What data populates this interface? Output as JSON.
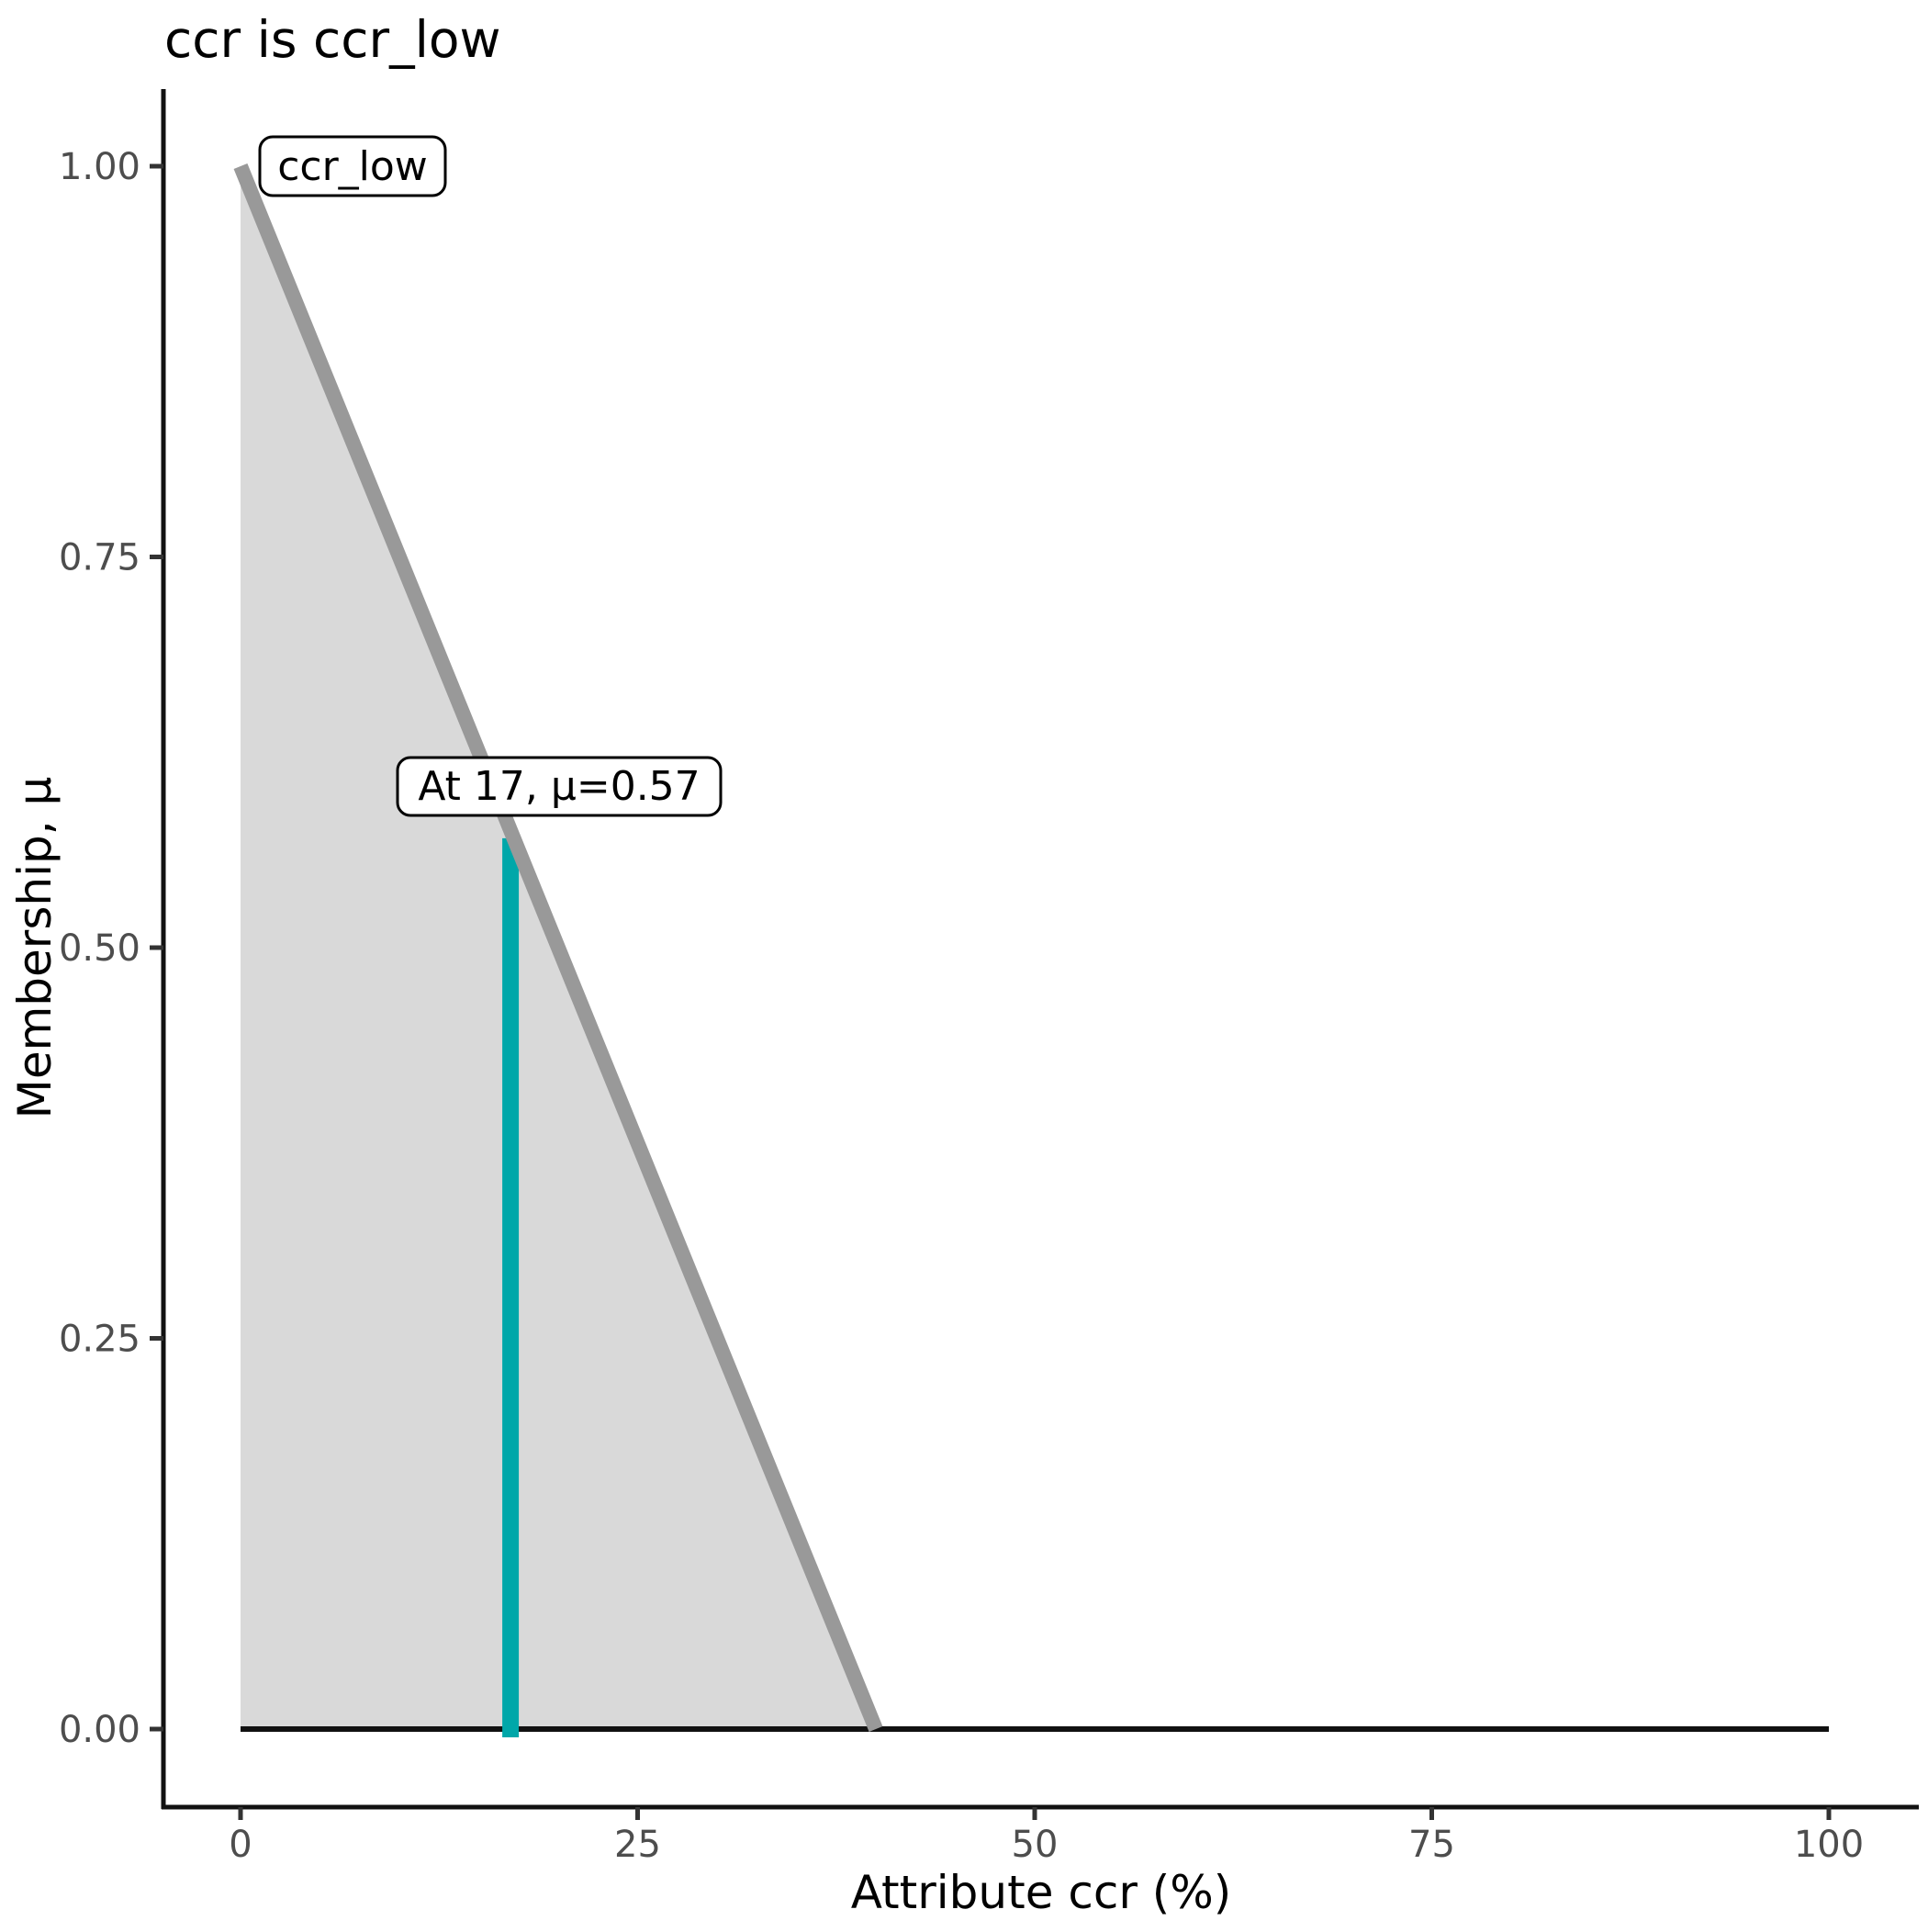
{
  "title": "ccr is ccr_low",
  "x_axis": {
    "label": "Attribute ccr (%)",
    "tick_labels": [
      "0",
      "25",
      "50",
      "75",
      "100"
    ],
    "tick_values": [
      0,
      25,
      50,
      75,
      100
    ],
    "range": [
      0,
      100
    ]
  },
  "y_axis": {
    "label": "Membership, μ",
    "tick_labels": [
      "0.00",
      "0.25",
      "0.50",
      "0.75",
      "1.00"
    ],
    "tick_values": [
      0.0,
      0.25,
      0.5,
      0.75,
      1.0
    ],
    "range": [
      0,
      1
    ]
  },
  "annotations": {
    "set_label": "ccr_low",
    "crisp_label": "At 17, μ=0.57"
  },
  "colors": {
    "membership_fill": "#D9D9D9",
    "membership_line": "#999999",
    "crisp_line": "#00A7A9",
    "baseline": "#111111",
    "axis_line": "#111111",
    "tick_mark": "#333333",
    "tick_text": "#4D4D4D",
    "text": "#000000",
    "label_box_fill": "#ffffff",
    "label_box_border": "#000000"
  },
  "chart_data": {
    "type": "area",
    "title": "ccr is ccr_low",
    "xlabel": "Attribute ccr (%)",
    "ylabel": "Membership, μ",
    "xlim": [
      0,
      100
    ],
    "ylim": [
      0,
      1
    ],
    "grid": false,
    "legend_position": "none",
    "series": [
      {
        "name": "ccr_low",
        "x": [
          0,
          40
        ],
        "y": [
          1.0,
          0.0
        ],
        "note": "triangular membership function, peak at x=0 (mu=1), reaches mu=0 at x=40"
      }
    ],
    "baseline": {
      "y": 0,
      "x_range": [
        0,
        100
      ]
    },
    "crisp_input": {
      "x": 17,
      "mu": 0.57
    }
  }
}
